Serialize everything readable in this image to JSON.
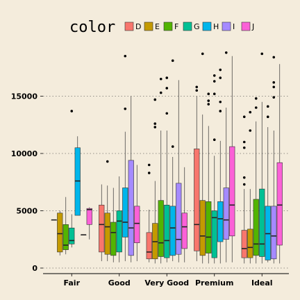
{
  "chart_data": {
    "type": "boxplot",
    "categories": [
      "Fair",
      "Good",
      "Very Good",
      "Premium",
      "Ideal"
    ],
    "ylim": [
      0,
      18800
    ],
    "yticks": [
      0,
      5000,
      10000,
      15000
    ],
    "grid": true,
    "legend": {
      "title": "color",
      "position": "top",
      "entries": [
        {
          "name": "D",
          "color": "#f8766d"
        },
        {
          "name": "E",
          "color": "#c49a00"
        },
        {
          "name": "F",
          "color": "#53b400"
        },
        {
          "name": "G",
          "color": "#00c094"
        },
        {
          "name": "H",
          "color": "#00b6eb"
        },
        {
          "name": "I",
          "color": "#a58aff"
        },
        {
          "name": "J",
          "color": "#fb61d7"
        }
      ]
    },
    "groups": [
      {
        "category": "Fair",
        "boxes": [
          {
            "color": "D",
            "whisker_low": 4200,
            "q1": 4200,
            "median": 4200,
            "q3": 4200,
            "whisker_high": 4200,
            "outliers": []
          },
          {
            "color": "E",
            "whisker_low": 1100,
            "q1": 1400,
            "median": 3000,
            "q3": 4800,
            "whisker_high": 5000,
            "outliers": []
          },
          {
            "color": "F",
            "whisker_low": 1200,
            "q1": 1600,
            "median": 2000,
            "q3": 3800,
            "whisker_high": 6200,
            "outliers": []
          },
          {
            "color": "G",
            "whisker_low": 1800,
            "q1": 2100,
            "median": 2400,
            "q3": 3500,
            "whisker_high": 4700,
            "outliers": [
              13700
            ]
          },
          {
            "color": "H",
            "whisker_low": 4600,
            "q1": 4600,
            "median": 7600,
            "q3": 10500,
            "whisker_high": 11500,
            "outliers": []
          },
          {
            "color": "I",
            "whisker_low": 2900,
            "q1": 2900,
            "median": 2900,
            "q3": 2900,
            "whisker_high": 2900,
            "outliers": []
          },
          {
            "color": "J",
            "whisker_low": 2500,
            "q1": 3800,
            "median": 5100,
            "q3": 5200,
            "whisker_high": 5300,
            "outliers": []
          }
        ]
      },
      {
        "category": "Good",
        "boxes": [
          {
            "color": "D",
            "whisker_low": 600,
            "q1": 1400,
            "median": 3800,
            "q3": 5500,
            "whisker_high": 7300,
            "outliers": []
          },
          {
            "color": "E",
            "whisker_low": 600,
            "q1": 1200,
            "median": 3600,
            "q3": 4800,
            "whisker_high": 7200,
            "outliers": [
              9300
            ]
          },
          {
            "color": "F",
            "whisker_low": 500,
            "q1": 1100,
            "median": 3100,
            "q3": 4000,
            "whisker_high": 7000,
            "outliers": []
          },
          {
            "color": "G",
            "whisker_low": 500,
            "q1": 1400,
            "median": 4100,
            "q3": 5000,
            "whisker_high": 8000,
            "outliers": []
          },
          {
            "color": "H",
            "whisker_low": 600,
            "q1": 2700,
            "median": 4000,
            "q3": 7000,
            "whisker_high": 11900,
            "outliers": [
              13900,
              18500
            ]
          },
          {
            "color": "I",
            "whisker_low": 500,
            "q1": 1100,
            "median": 3500,
            "q3": 9400,
            "whisker_high": 15000,
            "outliers": []
          },
          {
            "color": "J",
            "whisker_low": 600,
            "q1": 2200,
            "median": 3900,
            "q3": 5400,
            "whisker_high": 9000,
            "outliers": []
          }
        ]
      },
      {
        "category": "Very Good",
        "boxes": [
          {
            "color": "D",
            "whisker_low": 500,
            "q1": 800,
            "median": 1400,
            "q3": 3100,
            "whisker_high": 5100,
            "outliers": [
              8300,
              9000
            ]
          },
          {
            "color": "E",
            "whisker_low": 400,
            "q1": 800,
            "median": 2300,
            "q3": 3900,
            "whisker_high": 7600,
            "outliers": [
              12300,
              12600,
              14700
            ]
          },
          {
            "color": "F",
            "whisker_low": 400,
            "q1": 1000,
            "median": 2200,
            "q3": 5900,
            "whisker_high": 12000,
            "outliers": [
              15300,
              16500
            ]
          },
          {
            "color": "G",
            "whisker_low": 500,
            "q1": 900,
            "median": 2400,
            "q3": 5500,
            "whisker_high": 12000,
            "outliers": [
              13500,
              15700,
              16600
            ]
          },
          {
            "color": "H",
            "whisker_low": 600,
            "q1": 1100,
            "median": 3500,
            "q3": 5400,
            "whisker_high": 9700,
            "outliers": [
              10600,
              18100
            ]
          },
          {
            "color": "I",
            "whisker_low": 500,
            "q1": 1200,
            "median": 2500,
            "q3": 7400,
            "whisker_high": 16400,
            "outliers": []
          },
          {
            "color": "J",
            "whisker_low": 500,
            "q1": 1700,
            "median": 3600,
            "q3": 4800,
            "whisker_high": 8800,
            "outliers": []
          }
        ]
      },
      {
        "category": "Premium",
        "boxes": [
          {
            "color": "D",
            "whisker_low": 600,
            "q1": 1500,
            "median": 3800,
            "q3": 10400,
            "whisker_high": 15000,
            "outliers": [
              15500,
              15800
            ]
          },
          {
            "color": "E",
            "whisker_low": 400,
            "q1": 1100,
            "median": 2800,
            "q3": 5900,
            "whisker_high": 13400,
            "outliers": [
              18700
            ]
          },
          {
            "color": "F",
            "whisker_low": 400,
            "q1": 1300,
            "median": 2700,
            "q3": 5800,
            "whisker_high": 12400,
            "outliers": [
              14300,
              14600,
              15200
            ]
          },
          {
            "color": "G",
            "whisker_low": 400,
            "q1": 900,
            "median": 4400,
            "q3": 5000,
            "whisker_high": 9800,
            "outliers": [
              11200,
              15200,
              16300,
              16800
            ]
          },
          {
            "color": "H",
            "whisker_low": 400,
            "q1": 2300,
            "median": 4300,
            "q3": 5800,
            "whisker_high": 11100,
            "outliers": [
              13700,
              14500,
              16600,
              17300
            ]
          },
          {
            "color": "I",
            "whisker_low": 500,
            "q1": 2500,
            "median": 4200,
            "q3": 7000,
            "whisker_high": 14000,
            "outliers": [
              18800
            ]
          },
          {
            "color": "J",
            "whisker_low": 500,
            "q1": 2800,
            "median": 5500,
            "q3": 10600,
            "whisker_high": 18500,
            "outliers": []
          }
        ]
      },
      {
        "category": "Ideal",
        "boxes": [
          {
            "color": "D",
            "whisker_low": 400,
            "q1": 900,
            "median": 1700,
            "q3": 3300,
            "whisker_high": 6900,
            "outliers": [
              7300,
              7900,
              10500,
              11000,
              13200
            ]
          },
          {
            "color": "E",
            "whisker_low": 400,
            "q1": 900,
            "median": 1800,
            "q3": 3400,
            "whisker_high": 6900,
            "outliers": [
              12000,
              13600
            ]
          },
          {
            "color": "F",
            "whisker_low": 400,
            "q1": 1100,
            "median": 2100,
            "q3": 6000,
            "whisker_high": 12800,
            "outliers": [
              14000,
              14800
            ]
          },
          {
            "color": "G",
            "whisker_low": 400,
            "q1": 1000,
            "median": 2100,
            "q3": 6900,
            "whisker_high": 14500,
            "outliers": [
              18700
            ]
          },
          {
            "color": "H",
            "whisker_low": 500,
            "q1": 700,
            "median": 3000,
            "q3": 5400,
            "whisker_high": 12300,
            "outliers": [
              13200,
              14100
            ]
          },
          {
            "color": "I",
            "whisker_low": 400,
            "q1": 800,
            "median": 2800,
            "q3": 5400,
            "whisker_high": 12000,
            "outliers": [
              14900,
              15800,
              16200,
              18400
            ]
          },
          {
            "color": "J",
            "whisker_low": 400,
            "q1": 2000,
            "median": 5500,
            "q3": 9200,
            "whisker_high": 17800,
            "outliers": []
          }
        ]
      }
    ]
  }
}
